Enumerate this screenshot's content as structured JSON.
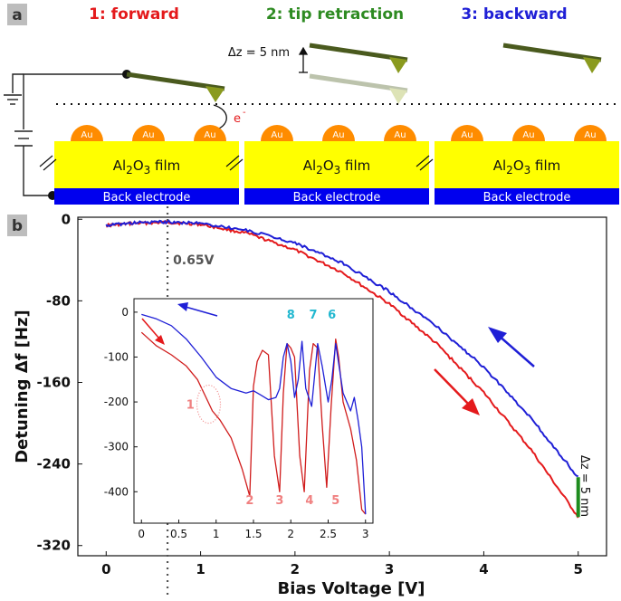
{
  "panel_a": {
    "label": "a",
    "step_titles": [
      {
        "text": "1: forward",
        "color": "#e41a1c"
      },
      {
        "text": "2: tip retraction",
        "color": "#2e8b22"
      },
      {
        "text": "3: backward",
        "color": "#1f1fd6"
      }
    ],
    "dz_label": "Δz = 5 nm",
    "electron_label": "e",
    "electron_sup": "-",
    "gold_label": "Au",
    "film_labels": [
      "Al2O3 film",
      "Al2O3 film",
      "Al2O3 film"
    ],
    "electrode_labels": [
      "Back electrode",
      "Back electrode",
      "Back electrode"
    ],
    "colors": {
      "film": "#ffff00",
      "electrode": "#0000ee",
      "gold": "#ff8c00",
      "cantilever": "#4a5a1e",
      "tip": "#8a9a1e"
    }
  },
  "panel_b": {
    "label": "b",
    "annotation_065": "0.65V",
    "dz_vertical_label": "Δz = 5 nm",
    "arrow_colors": {
      "forward": "#e41a1c",
      "backward": "#1f1fd6"
    }
  },
  "chart_data": [
    {
      "type": "line",
      "xlabel": "Bias Voltage [V]",
      "ylabel": "Detuning Δf [Hz]",
      "xlim": [
        -0.3,
        5.3
      ],
      "ylim": [
        -330,
        2
      ],
      "xticks": [
        0,
        1,
        2,
        3,
        4,
        5
      ],
      "yticks": [
        0,
        -80,
        -160,
        -240,
        -320
      ],
      "xtick_labels": [
        "0",
        "1",
        "2",
        "3",
        "4",
        "5"
      ],
      "ytick_labels": [
        "0",
        "-80",
        "-160",
        "-240",
        "-320"
      ],
      "vline_x": 0.65,
      "series": [
        {
          "color": "#e41a1c",
          "x": [
            0,
            0.3,
            0.65,
            1,
            1.5,
            2,
            2.5,
            3,
            3.5,
            4,
            4.5,
            5
          ],
          "y": [
            -6,
            -4,
            -3,
            -5,
            -14,
            -30,
            -52,
            -83,
            -122,
            -170,
            -226,
            -292
          ]
        },
        {
          "color": "#1f1fd6",
          "x": [
            0,
            0.3,
            0.65,
            1,
            1.5,
            2,
            2.5,
            3,
            3.5,
            4,
            4.5,
            5
          ],
          "y": [
            -6,
            -3.5,
            -2.5,
            -4,
            -11,
            -23,
            -43,
            -71,
            -105,
            -145,
            -195,
            -253
          ]
        },
        {
          "color": "#1e8c1e",
          "x": [
            5,
            5
          ],
          "y": [
            -253,
            -292
          ]
        }
      ]
    },
    {
      "type": "line",
      "xlim": [
        -0.1,
        3.1
      ],
      "ylim": [
        -470,
        30
      ],
      "xticks": [
        0,
        0.5,
        1,
        1.5,
        2,
        2.5,
        3
      ],
      "xtick_labels": [
        "0",
        "0.5",
        "1",
        "1.5",
        "2",
        "2.5",
        "3"
      ],
      "yticks": [
        0,
        -100,
        -200,
        -300,
        -400
      ],
      "ytick_labels": [
        "0",
        "-100",
        "-200",
        "-300",
        "-400"
      ],
      "peak_labels_bottom": [
        {
          "text": "2",
          "x": 1.45
        },
        {
          "text": "3",
          "x": 1.85
        },
        {
          "text": "4",
          "x": 2.25
        },
        {
          "text": "5",
          "x": 2.6
        }
      ],
      "peak_labels_top": [
        {
          "text": "8",
          "x": 2.0
        },
        {
          "text": "7",
          "x": 2.3
        },
        {
          "text": "6",
          "x": 2.55
        }
      ],
      "label_1": {
        "text": "1",
        "x": 0.6,
        "y": -205
      },
      "series": [
        {
          "color": "#d01c1c",
          "x": [
            0,
            0.2,
            0.4,
            0.6,
            0.75,
            0.85,
            0.95,
            1.05,
            1.2,
            1.35,
            1.45,
            1.5,
            1.55,
            1.62,
            1.7,
            1.78,
            1.85,
            1.9,
            1.95,
            2.0,
            2.05,
            2.12,
            2.18,
            2.25,
            2.3,
            2.36,
            2.42,
            2.48,
            2.54,
            2.6,
            2.64,
            2.7,
            2.8,
            2.88,
            2.95,
            3.0
          ],
          "y": [
            -45,
            -75,
            -95,
            -120,
            -150,
            -185,
            -220,
            -240,
            -280,
            -350,
            -410,
            -165,
            -110,
            -85,
            -95,
            -320,
            -400,
            -180,
            -70,
            -80,
            -100,
            -320,
            -400,
            -130,
            -70,
            -80,
            -250,
            -390,
            -210,
            -60,
            -100,
            -200,
            -260,
            -330,
            -440,
            -450
          ]
        },
        {
          "color": "#1f1fd6",
          "x": [
            0,
            0.2,
            0.4,
            0.6,
            0.8,
            1.0,
            1.2,
            1.4,
            1.5,
            1.6,
            1.7,
            1.8,
            1.85,
            1.9,
            1.95,
            2.0,
            2.05,
            2.1,
            2.15,
            2.2,
            2.28,
            2.36,
            2.42,
            2.5,
            2.55,
            2.6,
            2.7,
            2.8,
            2.85,
            2.9,
            2.95,
            3.0
          ],
          "y": [
            -5,
            -15,
            -30,
            -60,
            -100,
            -145,
            -170,
            -180,
            -175,
            -185,
            -195,
            -190,
            -170,
            -100,
            -70,
            -110,
            -190,
            -150,
            -65,
            -170,
            -210,
            -70,
            -120,
            -200,
            -150,
            -70,
            -180,
            -220,
            -190,
            -240,
            -300,
            -450
          ]
        }
      ]
    }
  ]
}
